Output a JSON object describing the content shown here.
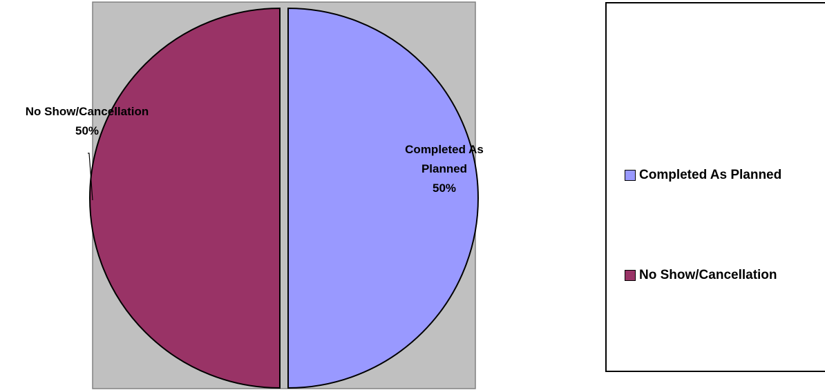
{
  "chart_data": {
    "type": "pie",
    "slices": [
      {
        "name": "Completed As Planned",
        "value": 50,
        "label_lines": [
          "Completed As",
          "Planned",
          "50%"
        ],
        "color": "#9999FF"
      },
      {
        "name": "No Show/Cancellation",
        "value": 50,
        "label_lines": [
          "No Show/Cancellation",
          "50%"
        ],
        "color": "#993366"
      }
    ],
    "legend": {
      "position": "right",
      "items": [
        "Completed As Planned",
        "No Show/Cancellation"
      ]
    },
    "plot_area_color": "#C0C0C0",
    "exploded": true
  }
}
